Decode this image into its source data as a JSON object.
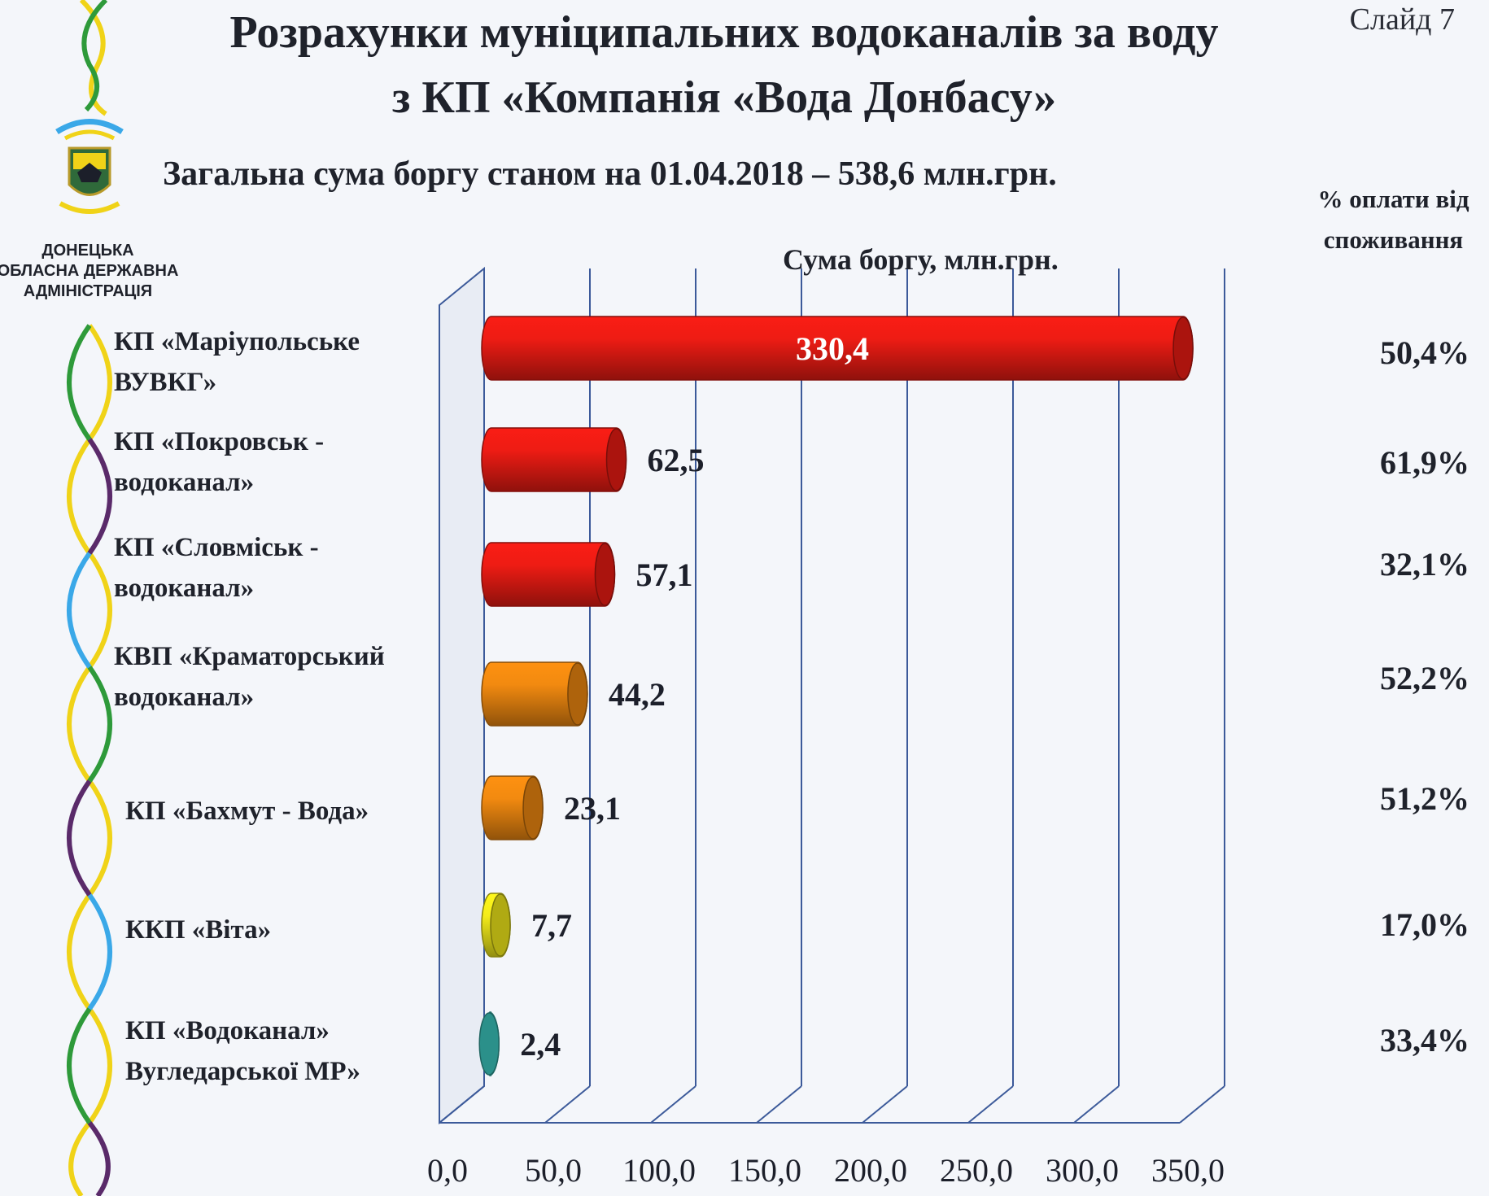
{
  "slide_number": "Слайд 7",
  "title_line1": "Розрахунки муніципальних водоканалів за воду",
  "title_line2": "з КП «Компанія «Вода Донбасу»",
  "subtitle": "Загальна сума боргу станом на 01.04.2018 – 538,6 млн.грн.",
  "org_lines": [
    "ДОНЕЦЬКА",
    "ОБЛАСНА ДЕРЖАВНА",
    "АДМІНІСТРАЦІЯ"
  ],
  "pct_header_lines": [
    "% оплати від",
    "споживання"
  ],
  "rows": [
    {
      "label_lines": [
        "КП «Маріупольське",
        "ВУВКГ»"
      ],
      "pct": "50,4%"
    },
    {
      "label_lines": [
        "КП «Покровськ -",
        "водоканал»"
      ],
      "pct": "61,9%"
    },
    {
      "label_lines": [
        "КП «Словміськ -",
        "водоканал»"
      ],
      "pct": "32,1%"
    },
    {
      "label_lines": [
        "КВП «Краматорський",
        "водоканал»"
      ],
      "pct": "52,2%"
    },
    {
      "label_lines": [
        "КП «Бахмут - Вода»"
      ],
      "pct": "51,2%"
    },
    {
      "label_lines": [
        "ККП «Віта»"
      ],
      "pct": "17,0%"
    },
    {
      "label_lines": [
        "КП «Водоканал»",
        "Вугледарської  МР»"
      ],
      "pct": "33,4%"
    }
  ],
  "colors": {
    "red": "#ee1c14",
    "orange": "#f28a10",
    "yellow": "#f4ec1a",
    "teal": "#3cc8c0"
  },
  "chart_data": {
    "type": "bar",
    "orientation": "horizontal",
    "title": "Сума боргу, млн.грн.",
    "categories": [
      "КП «Маріупольське ВУВКГ»",
      "КП «Покровськ - водоканал»",
      "КП «Словміськ - водоканал»",
      "КВП «Краматорський водоканал»",
      "КП «Бахмут - Вода»",
      "ККП «Віта»",
      "КП «Водоканал» Вугледарської  МР»"
    ],
    "values": [
      330.4,
      62.5,
      57.1,
      44.2,
      23.1,
      7.7,
      2.4
    ],
    "value_labels": [
      "330,4",
      "62,5",
      "57,1",
      "44,2",
      "23,1",
      "7,7",
      "2,4"
    ],
    "bar_colors": [
      "red",
      "red",
      "red",
      "orange",
      "orange",
      "yellow",
      "teal"
    ],
    "xlim": [
      0,
      350
    ],
    "tick_values": [
      0,
      50,
      100,
      150,
      200,
      250,
      300,
      350
    ],
    "tick_labels": [
      "0,0",
      "50,0",
      "100,0",
      "150,0",
      "200,0",
      "250,0",
      "300,0",
      "350,0"
    ],
    "grid": true
  }
}
